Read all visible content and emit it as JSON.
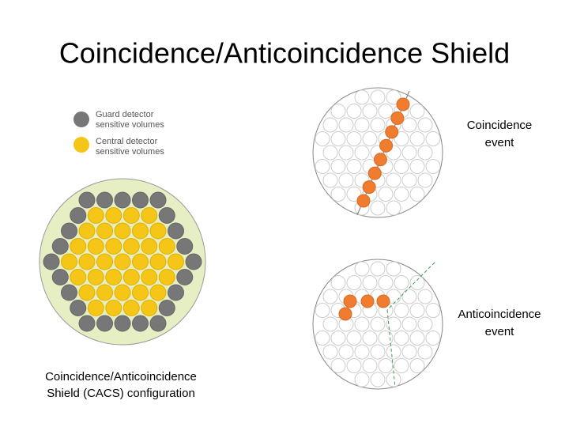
{
  "title": "Coincidence/Anticoincidence Shield",
  "legend": [
    {
      "lines": [
        "Guard detector",
        "sensitive volumes"
      ]
    },
    {
      "lines": [
        "Central detector",
        "sensitive volumes"
      ]
    }
  ],
  "captions": {
    "configuration": [
      "Coincidence/Anticoincidence",
      "Shield (CACS) configuration"
    ],
    "coincidence": [
      "Coincidence",
      "event"
    ],
    "anticoincidence": [
      "Anticoincidence",
      "event"
    ]
  }
}
